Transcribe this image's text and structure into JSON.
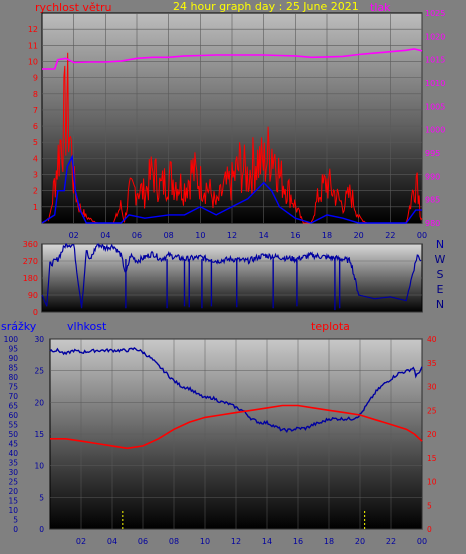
{
  "header": {
    "wind_label": "rychlost větru",
    "title": "24 hour graph day : 25 June 2021",
    "pressure_label": "tlak"
  },
  "footer": {
    "rain_label": "srážky",
    "humidity_label": "vlhkost",
    "temperature_label": "teplota"
  },
  "colors": {
    "frame": "#808080",
    "wind": "#ff0000",
    "gust": "#0000ff",
    "pressure": "#ff00ff",
    "direction": "#0000a0",
    "humidity": "#0000a0",
    "temperature": "#ff0000",
    "rain_marks": "#ffff00",
    "title": "#ffff00"
  },
  "chart_data": [
    {
      "type": "line",
      "name": "wind-pressure",
      "x_ticks": [
        "02",
        "04",
        "06",
        "08",
        "10",
        "12",
        "14",
        "16",
        "18",
        "20",
        "22",
        "00"
      ],
      "x_range_hours": [
        0,
        24
      ],
      "y_left": {
        "label": "rychlost větru",
        "ticks": [
          "1",
          "2",
          "3",
          "4",
          "5",
          "6",
          "7",
          "8",
          "9",
          "10",
          "11",
          "12"
        ],
        "range": [
          0,
          13
        ]
      },
      "y_right": {
        "label": "tlak",
        "ticks": [
          "980",
          "985",
          "990",
          "995",
          "1000",
          "1005",
          "1010",
          "1015",
          "1020",
          "1025"
        ],
        "range": [
          980,
          1025
        ]
      },
      "series": [
        {
          "name": "rychlost větru",
          "color": "#ff0000",
          "points": [
            [
              0,
              0
            ],
            [
              0.5,
              0.5
            ],
            [
              1.0,
              5.5
            ],
            [
              1.3,
              8.0
            ],
            [
              1.6,
              10.2
            ],
            [
              1.8,
              7.0
            ],
            [
              2.0,
              3.5
            ],
            [
              2.3,
              1.5
            ],
            [
              2.8,
              0.5
            ],
            [
              3.5,
              0
            ],
            [
              4.0,
              0
            ],
            [
              4.5,
              0
            ],
            [
              5.0,
              1.5
            ],
            [
              5.2,
              0
            ],
            [
              5.5,
              2.5
            ],
            [
              6.0,
              3.0
            ],
            [
              6.5,
              2.5
            ],
            [
              7.0,
              4.5
            ],
            [
              7.5,
              3.0
            ],
            [
              8.0,
              4.0
            ],
            [
              8.5,
              3.5
            ],
            [
              9.0,
              3.0
            ],
            [
              9.5,
              4.5
            ],
            [
              10.0,
              3.5
            ],
            [
              10.5,
              3.0
            ],
            [
              11.0,
              1.5
            ],
            [
              11.5,
              3.0
            ],
            [
              12.0,
              3.5
            ],
            [
              12.5,
              5.0
            ],
            [
              13.0,
              4.0
            ],
            [
              13.5,
              5.5
            ],
            [
              14.0,
              5.0
            ],
            [
              14.5,
              6.5
            ],
            [
              14.8,
              5.5
            ],
            [
              15.0,
              4.0
            ],
            [
              15.5,
              3.0
            ],
            [
              16.0,
              1.5
            ],
            [
              16.5,
              0
            ],
            [
              17.0,
              0
            ],
            [
              17.5,
              2.5
            ],
            [
              18.0,
              3.5
            ],
            [
              18.5,
              2.5
            ],
            [
              19.0,
              1.5
            ],
            [
              19.5,
              2.5
            ],
            [
              20.0,
              0.5
            ],
            [
              20.5,
              0
            ],
            [
              21.0,
              0
            ],
            [
              22.0,
              0
            ],
            [
              23.0,
              0
            ],
            [
              23.5,
              3.0
            ],
            [
              23.7,
              4.5
            ],
            [
              23.9,
              0.5
            ]
          ]
        },
        {
          "name": "nárazy",
          "color": "#0000ff",
          "points": [
            [
              0,
              0
            ],
            [
              0.8,
              0.5
            ],
            [
              1.0,
              2.0
            ],
            [
              1.4,
              2.0
            ],
            [
              1.6,
              3.5
            ],
            [
              1.9,
              4.1
            ],
            [
              2.1,
              2.0
            ],
            [
              2.4,
              0.8
            ],
            [
              2.8,
              0
            ],
            [
              5.0,
              0
            ],
            [
              5.5,
              0.5
            ],
            [
              6.5,
              0.3
            ],
            [
              8.0,
              0.5
            ],
            [
              9.0,
              0.5
            ],
            [
              10.0,
              1.0
            ],
            [
              11.0,
              0.5
            ],
            [
              12.0,
              1.0
            ],
            [
              13.0,
              1.5
            ],
            [
              14.0,
              2.5
            ],
            [
              14.5,
              2.0
            ],
            [
              15.0,
              1.0
            ],
            [
              16.0,
              0.3
            ],
            [
              17.0,
              0
            ],
            [
              18.0,
              0.5
            ],
            [
              19.0,
              0.3
            ],
            [
              20.0,
              0
            ],
            [
              23.0,
              0
            ],
            [
              23.6,
              0.8
            ],
            [
              24,
              0.8
            ]
          ]
        },
        {
          "name": "tlak",
          "color": "#ff00ff",
          "points": [
            [
              0,
              1013
            ],
            [
              0.8,
              1013
            ],
            [
              1.0,
              1015
            ],
            [
              1.5,
              1015.3
            ],
            [
              2.0,
              1014.4
            ],
            [
              3.0,
              1014.5
            ],
            [
              4.0,
              1014.5
            ],
            [
              5.0,
              1014.7
            ],
            [
              6.0,
              1015.3
            ],
            [
              7.0,
              1015.5
            ],
            [
              8.0,
              1015.5
            ],
            [
              9.0,
              1015.8
            ],
            [
              10.0,
              1015.9
            ],
            [
              11.0,
              1016.0
            ],
            [
              12.0,
              1016.0
            ],
            [
              13.0,
              1016.0
            ],
            [
              14.0,
              1016.0
            ],
            [
              15.0,
              1015.9
            ],
            [
              16.0,
              1015.8
            ],
            [
              17.0,
              1015.5
            ],
            [
              18.0,
              1015.6
            ],
            [
              19.0,
              1015.7
            ],
            [
              20.0,
              1016.1
            ],
            [
              21.0,
              1016.4
            ],
            [
              22.0,
              1016.7
            ],
            [
              23.0,
              1017.0
            ],
            [
              23.5,
              1017.3
            ],
            [
              24.0,
              1016.9
            ]
          ]
        }
      ]
    },
    {
      "type": "line",
      "name": "wind-direction",
      "x_range_hours": [
        0,
        24
      ],
      "y": {
        "ticks": [
          "0",
          "90",
          "180",
          "270",
          "360"
        ],
        "range": [
          0,
          360
        ]
      },
      "compass_labels": [
        "N",
        "W",
        "S",
        "E",
        "N"
      ],
      "series": [
        {
          "name": "směr větru",
          "color": "#0000a0",
          "points": [
            [
              0,
              90
            ],
            [
              0.3,
              30
            ],
            [
              0.5,
              250
            ],
            [
              1.0,
              280
            ],
            [
              1.5,
              360
            ],
            [
              2.0,
              355
            ],
            [
              2.5,
              20
            ],
            [
              2.8,
              330
            ],
            [
              3.0,
              270
            ],
            [
              3.5,
              360
            ],
            [
              4.0,
              340
            ],
            [
              4.5,
              350
            ],
            [
              5.0,
              300
            ],
            [
              5.3,
              200
            ],
            [
              5.6,
              300
            ],
            [
              6.0,
              270
            ],
            [
              7.0,
              310
            ],
            [
              7.5,
              280
            ],
            [
              8.0,
              300
            ],
            [
              9.0,
              280
            ],
            [
              10.0,
              290
            ],
            [
              11.0,
              270
            ],
            [
              12.0,
              280
            ],
            [
              13.0,
              270
            ],
            [
              14.0,
              300
            ],
            [
              15.0,
              290
            ],
            [
              16.0,
              280
            ],
            [
              17.0,
              300
            ],
            [
              18.0,
              290
            ],
            [
              19.0,
              280
            ],
            [
              19.5,
              270
            ],
            [
              20.0,
              90
            ],
            [
              20.5,
              80
            ],
            [
              21.0,
              70
            ],
            [
              22.0,
              80
            ],
            [
              23.0,
              60
            ],
            [
              23.4,
              200
            ],
            [
              23.7,
              300
            ],
            [
              24.0,
              270
            ]
          ]
        }
      ],
      "dips": [
        [
          5.3,
          20
        ],
        [
          7.9,
          20
        ],
        [
          9.0,
          30
        ],
        [
          9.3,
          25
        ],
        [
          10.1,
          20
        ],
        [
          10.7,
          30
        ],
        [
          12.3,
          25
        ],
        [
          14.6,
          20
        ],
        [
          16.1,
          30
        ],
        [
          18.5,
          10
        ],
        [
          18.8,
          20
        ]
      ]
    },
    {
      "type": "line",
      "name": "humidity-temperature",
      "x_ticks": [
        "02",
        "04",
        "06",
        "08",
        "10",
        "12",
        "14",
        "16",
        "18",
        "20",
        "22",
        "00"
      ],
      "x_range_hours": [
        0,
        24
      ],
      "y_rain": {
        "label": "srážky",
        "ticks": [
          "0",
          "5",
          "10",
          "15",
          "20",
          "25",
          "30",
          "35",
          "40",
          "45",
          "50",
          "55",
          "60",
          "65",
          "70",
          "75",
          "80",
          "85",
          "90",
          "95",
          "100"
        ],
        "range": [
          0,
          100
        ]
      },
      "y_humidity": {
        "label": "vlhkost",
        "ticks": [
          "0",
          "5",
          "10",
          "15",
          "20",
          "25",
          "30"
        ],
        "range": [
          0,
          30
        ]
      },
      "y_temperature": {
        "label": "teplota",
        "ticks": [
          "0",
          "5",
          "10",
          "15",
          "20",
          "25",
          "30",
          "35",
          "40"
        ],
        "range": [
          0,
          40
        ]
      },
      "series": [
        {
          "name": "vlhkost",
          "color": "#0000a0",
          "points": [
            [
              0,
              94
            ],
            [
              0.5,
              94
            ],
            [
              1.0,
              92
            ],
            [
              1.5,
              94
            ],
            [
              2.0,
              93
            ],
            [
              3.0,
              94
            ],
            [
              4.0,
              94
            ],
            [
              5.0,
              94
            ],
            [
              5.5,
              95
            ],
            [
              6.0,
              93
            ],
            [
              6.5,
              90
            ],
            [
              7.0,
              86
            ],
            [
              7.5,
              82
            ],
            [
              8.0,
              78
            ],
            [
              8.5,
              75
            ],
            [
              9.0,
              74
            ],
            [
              9.5,
              71
            ],
            [
              10.0,
              69
            ],
            [
              10.5,
              69
            ],
            [
              11.0,
              67
            ],
            [
              11.5,
              66
            ],
            [
              12.0,
              64
            ],
            [
              12.5,
              62
            ],
            [
              13.0,
              58
            ],
            [
              13.5,
              56
            ],
            [
              14.0,
              56
            ],
            [
              14.5,
              54
            ],
            [
              15.0,
              52
            ],
            [
              15.5,
              52
            ],
            [
              16.0,
              53
            ],
            [
              16.5,
              53
            ],
            [
              17.0,
              55
            ],
            [
              17.5,
              56
            ],
            [
              18.0,
              58
            ],
            [
              18.5,
              58
            ],
            [
              19.0,
              58
            ],
            [
              19.5,
              58
            ],
            [
              20.0,
              60
            ],
            [
              20.5,
              66
            ],
            [
              21.0,
              72
            ],
            [
              21.5,
              76
            ],
            [
              22.0,
              79
            ],
            [
              22.5,
              82
            ],
            [
              23.0,
              83
            ],
            [
              23.5,
              85
            ],
            [
              23.6,
              80
            ],
            [
              24.0,
              85
            ]
          ]
        },
        {
          "name": "teplota",
          "color": "#ff0000",
          "points": [
            [
              0,
              19
            ],
            [
              1.0,
              19
            ],
            [
              2.0,
              18.5
            ],
            [
              3.0,
              18
            ],
            [
              4.0,
              17.5
            ],
            [
              5.0,
              17
            ],
            [
              6.0,
              17.5
            ],
            [
              7.0,
              19
            ],
            [
              8.0,
              21
            ],
            [
              9.0,
              22.5
            ],
            [
              10.0,
              23.5
            ],
            [
              11.0,
              24
            ],
            [
              12.0,
              24.5
            ],
            [
              13.0,
              25
            ],
            [
              14.0,
              25.5
            ],
            [
              15.0,
              26
            ],
            [
              16.0,
              26
            ],
            [
              17.0,
              25.5
            ],
            [
              18.0,
              25
            ],
            [
              19.0,
              24.5
            ],
            [
              20.0,
              24
            ],
            [
              21.0,
              23
            ],
            [
              22.0,
              22
            ],
            [
              23.0,
              21
            ],
            [
              23.5,
              20
            ],
            [
              24.0,
              18.5
            ]
          ]
        }
      ],
      "rain_marks_hours": [
        4.7,
        20.3
      ]
    }
  ]
}
